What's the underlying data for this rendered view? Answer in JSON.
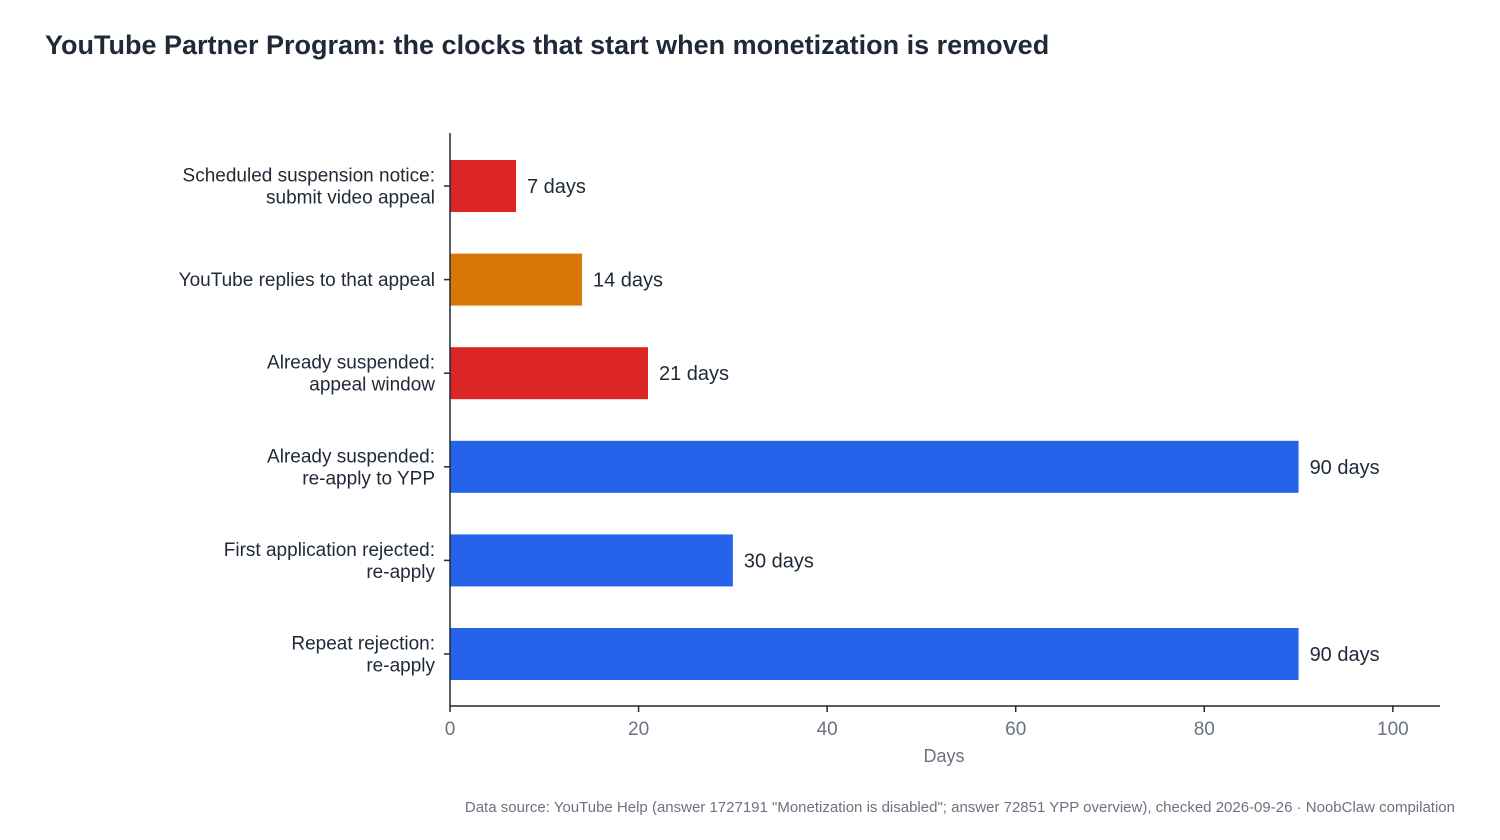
{
  "title": "YouTube Partner Program: the clocks that start when monetization is removed",
  "source_note": "Data source: YouTube Help (answer 1727191 \"Monetization is disabled\"; answer 72851 YPP overview), checked 2026-09-26 · NoobClaw compilation",
  "colors": {
    "red": "#dc2626",
    "orange": "#d97706",
    "blue": "#2563eb",
    "axis": "#1f2937",
    "text": "#1f2937",
    "muted": "#6b7280"
  },
  "chart_data": {
    "type": "bar",
    "orientation": "horizontal",
    "categories": [
      [
        "Scheduled suspension notice:",
        "submit video appeal"
      ],
      [
        "YouTube replies to that appeal"
      ],
      [
        "Already suspended:",
        "appeal window"
      ],
      [
        "Already suspended:",
        "re-apply to YPP"
      ],
      [
        "First application rejected:",
        "re-apply"
      ],
      [
        "Repeat rejection:",
        "re-apply"
      ]
    ],
    "values": [
      7,
      14,
      21,
      90,
      30,
      90
    ],
    "value_labels": [
      "7 days",
      "14 days",
      "21 days",
      "90 days",
      "30 days",
      "90 days"
    ],
    "bar_colors": [
      "red",
      "orange",
      "red",
      "blue",
      "blue",
      "blue"
    ],
    "xlabel": "Days",
    "ylabel": "",
    "xlim": [
      0,
      105
    ],
    "xticks": [
      0,
      20,
      40,
      60,
      80,
      100
    ],
    "grid": false,
    "legend": "none"
  }
}
